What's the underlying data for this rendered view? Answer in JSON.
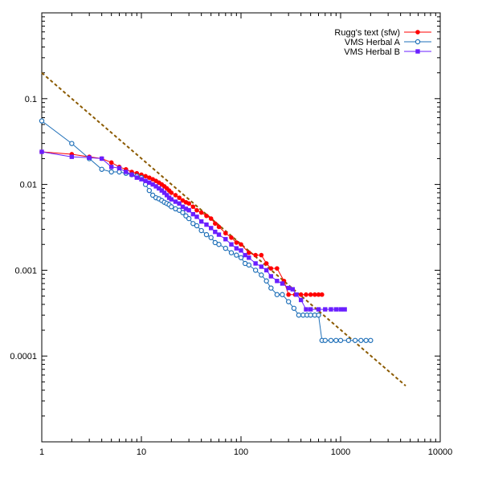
{
  "chart_data": {
    "type": "scatter",
    "xscale": "log",
    "yscale": "log",
    "xlim": [
      1,
      10000
    ],
    "ylim": [
      1e-05,
      1
    ],
    "grid": false,
    "legend_position": "top-right",
    "title": "",
    "xlabel": "",
    "ylabel": "",
    "x_ticks": [
      {
        "value": 1,
        "label": "1"
      },
      {
        "value": 10,
        "label": "10"
      },
      {
        "value": 100,
        "label": "100"
      },
      {
        "value": 1000,
        "label": "1000"
      },
      {
        "value": 10000,
        "label": "10000"
      }
    ],
    "y_ticks": [
      {
        "value": 0.1,
        "label": "0.1"
      },
      {
        "value": 0.01,
        "label": "0.01"
      },
      {
        "value": 0.001,
        "label": "0.001"
      },
      {
        "value": 0.0001,
        "label": "0.0001"
      }
    ],
    "reference_line": {
      "style": "dashed",
      "color": "#8b5a00",
      "x": [
        1,
        4500
      ],
      "y": [
        0.2,
        4.5e-05
      ]
    },
    "series": [
      {
        "name": "Rugg's text (sfw)",
        "color": "#ff0000",
        "marker": "circle-filled",
        "x": [
          1,
          2,
          3,
          4,
          5,
          6,
          7,
          8,
          9,
          10,
          11,
          12,
          13,
          14,
          15,
          16,
          17,
          18,
          19,
          20,
          22,
          24,
          26,
          28,
          30,
          33,
          36,
          40,
          45,
          50,
          55,
          60,
          70,
          80,
          90,
          100,
          120,
          140,
          160,
          180,
          200,
          230,
          270,
          300,
          350,
          400,
          450,
          500,
          550,
          600,
          650
        ],
        "y": [
          0.024,
          0.0225,
          0.021,
          0.02,
          0.018,
          0.016,
          0.015,
          0.014,
          0.0135,
          0.013,
          0.0125,
          0.012,
          0.0115,
          0.011,
          0.0105,
          0.01,
          0.0095,
          0.009,
          0.0085,
          0.008,
          0.0075,
          0.007,
          0.0065,
          0.0062,
          0.006,
          0.0055,
          0.005,
          0.0047,
          0.0043,
          0.004,
          0.0035,
          0.0032,
          0.0027,
          0.0024,
          0.0021,
          0.002,
          0.0016,
          0.0015,
          0.0015,
          0.0012,
          0.00105,
          0.00105,
          0.00075,
          0.00052,
          0.00052,
          0.00052,
          0.00052,
          0.00052,
          0.00052,
          0.00052,
          0.00052
        ]
      },
      {
        "name": "VMS Herbal A",
        "color": "#1e6fb8",
        "marker": "circle-open",
        "x": [
          1,
          2,
          3,
          4,
          5,
          6,
          7,
          8,
          9,
          10,
          11,
          12,
          13,
          14,
          15,
          16,
          17,
          18,
          19,
          20,
          22,
          24,
          26,
          28,
          30,
          33,
          36,
          40,
          45,
          50,
          55,
          60,
          70,
          80,
          90,
          100,
          110,
          120,
          140,
          160,
          180,
          200,
          230,
          260,
          300,
          340,
          380,
          420,
          460,
          500,
          550,
          600,
          650,
          700,
          800,
          900,
          1000,
          1200,
          1400,
          1600,
          1800,
          2000
        ],
        "y": [
          0.055,
          0.03,
          0.02,
          0.015,
          0.014,
          0.014,
          0.0135,
          0.013,
          0.0125,
          0.012,
          0.01,
          0.0085,
          0.0075,
          0.007,
          0.0068,
          0.0065,
          0.0062,
          0.006,
          0.0058,
          0.0055,
          0.0052,
          0.005,
          0.0047,
          0.0043,
          0.004,
          0.0035,
          0.0033,
          0.0029,
          0.0026,
          0.0024,
          0.0021,
          0.002,
          0.0018,
          0.0016,
          0.0015,
          0.0014,
          0.0012,
          0.00115,
          0.001,
          0.00088,
          0.00075,
          0.00062,
          0.00052,
          0.00052,
          0.00043,
          0.00036,
          0.0003,
          0.0003,
          0.0003,
          0.0003,
          0.0003,
          0.0003,
          0.000152,
          0.000152,
          0.000152,
          0.000152,
          0.000152,
          0.000152,
          0.000152,
          0.000152,
          0.000152,
          0.000152
        ]
      },
      {
        "name": "VMS Herbal B",
        "color": "#6a1fff",
        "marker": "square-filled",
        "x": [
          1,
          2,
          3,
          4,
          5,
          6,
          7,
          8,
          9,
          10,
          11,
          12,
          13,
          14,
          15,
          16,
          17,
          18,
          19,
          20,
          22,
          24,
          26,
          28,
          30,
          33,
          36,
          40,
          45,
          50,
          55,
          60,
          70,
          80,
          90,
          100,
          110,
          120,
          140,
          160,
          180,
          200,
          230,
          260,
          300,
          330,
          360,
          400,
          450,
          500,
          600,
          700,
          800,
          900,
          1000,
          1100
        ],
        "y": [
          0.024,
          0.021,
          0.0205,
          0.02,
          0.016,
          0.0155,
          0.014,
          0.013,
          0.012,
          0.0115,
          0.011,
          0.0105,
          0.01,
          0.0095,
          0.009,
          0.0085,
          0.008,
          0.0075,
          0.007,
          0.0067,
          0.0063,
          0.006,
          0.0055,
          0.0052,
          0.005,
          0.0045,
          0.0042,
          0.0037,
          0.0034,
          0.0031,
          0.0028,
          0.0026,
          0.0023,
          0.002,
          0.0018,
          0.0017,
          0.0015,
          0.0014,
          0.0012,
          0.0011,
          0.001,
          0.00085,
          0.00075,
          0.0007,
          0.00062,
          0.0006,
          0.00052,
          0.00045,
          0.00035,
          0.00035,
          0.00035,
          0.00035,
          0.00035,
          0.00035,
          0.00035,
          0.00035
        ]
      }
    ]
  }
}
